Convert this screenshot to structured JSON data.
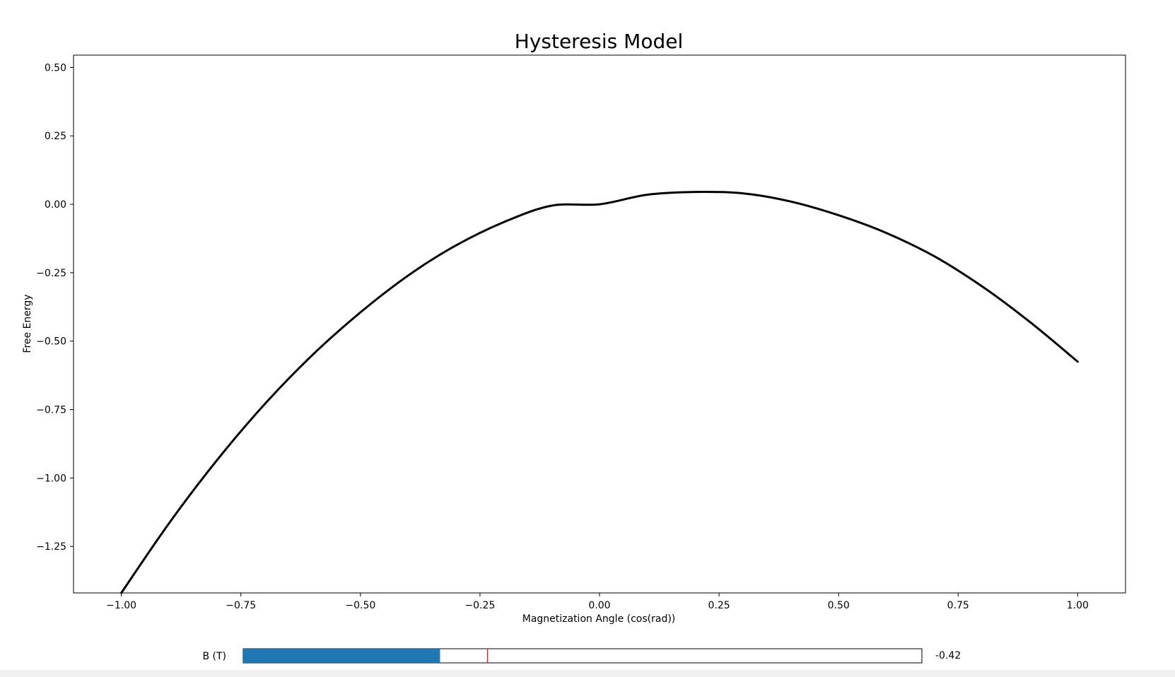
{
  "chart_data": {
    "type": "line",
    "title": "Hysteresis Model",
    "xlabel": "Magnetization Angle (cos(rad))",
    "ylabel": "Free Energy",
    "xlim": [
      -1.1,
      1.1
    ],
    "ylim": [
      -1.42,
      0.545
    ],
    "xticks": [
      -1.0,
      -0.75,
      -0.5,
      -0.25,
      0.0,
      0.25,
      0.5,
      0.75,
      1.0
    ],
    "xtick_labels": [
      "−1.00",
      "−0.75",
      "−0.50",
      "−0.25",
      "0.00",
      "0.25",
      "0.50",
      "0.75",
      "1.00"
    ],
    "yticks": [
      0.5,
      0.25,
      0.0,
      -0.25,
      -0.5,
      -0.75,
      -1.0,
      -1.25
    ],
    "ytick_labels": [
      "0.50",
      "0.25",
      "0.00",
      "−0.25",
      "−0.50",
      "−0.75",
      "−1.00",
      "−1.25"
    ],
    "grid": false,
    "series": [
      {
        "color": "#000000",
        "x": [
          -1.0,
          -0.9,
          -0.8,
          -0.7,
          -0.6,
          -0.5,
          -0.4,
          -0.3,
          -0.2,
          -0.1,
          0.0,
          0.1,
          0.2,
          0.3,
          0.4,
          0.5,
          0.6,
          0.7,
          0.8,
          0.9,
          1.0
        ],
        "y": [
          -1.42,
          -1.165,
          -0.935,
          -0.73,
          -0.55,
          -0.395,
          -0.26,
          -0.15,
          -0.065,
          -0.005,
          0.0,
          0.035,
          0.045,
          0.04,
          0.01,
          -0.04,
          -0.105,
          -0.19,
          -0.3,
          -0.43,
          -0.575
        ]
      }
    ]
  },
  "slider": {
    "label": "B (T)",
    "value_text": "-0.42",
    "value": -0.42,
    "min": -1.0,
    "max": 1.0,
    "initial": -0.28,
    "fill_color": "#1f77b4",
    "init_marker_color": "#d62728"
  }
}
